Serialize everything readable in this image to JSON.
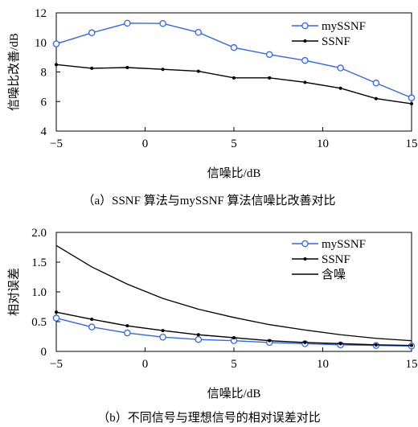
{
  "chart_data": [
    {
      "type": "line",
      "ylabel": "信噪比改善/dB",
      "xlabel": "信噪比/dB",
      "caption": "（a）SSNF 算法与mySSNF 算法信噪比改善对比",
      "xlim": [
        -5,
        15
      ],
      "ylim": [
        4,
        12
      ],
      "xticks": [
        "−5",
        "0",
        "5",
        "10",
        "15"
      ],
      "xtick_values": [
        -5,
        0,
        5,
        10,
        15
      ],
      "yticks": [
        "4",
        "6",
        "8",
        "10",
        "12"
      ],
      "ytick_values": [
        4,
        6,
        8,
        10,
        12
      ],
      "grid": false,
      "legend_position": "top-right",
      "series": [
        {
          "name": "mySSNF",
          "color": "#3366ee",
          "marker": "open-circle",
          "x": [
            -5,
            -3,
            -1,
            1,
            3,
            5,
            7,
            9,
            11,
            13,
            15
          ],
          "y": [
            9.9,
            10.65,
            11.3,
            11.28,
            10.68,
            9.65,
            9.18,
            8.78,
            8.27,
            7.25,
            6.25
          ]
        },
        {
          "name": "SSNF",
          "color": "#000000",
          "marker": "dot",
          "x": [
            -5,
            -3,
            -1,
            1,
            3,
            5,
            7,
            9,
            11,
            13,
            15
          ],
          "y": [
            8.5,
            8.25,
            8.3,
            8.18,
            8.05,
            7.6,
            7.6,
            7.3,
            6.9,
            6.2,
            5.85
          ]
        }
      ]
    },
    {
      "type": "line",
      "ylabel": "相对误差",
      "xlabel": "信噪比/dB",
      "caption": "（b）不同信号与理想信号的相对误差对比",
      "xlim": [
        -5,
        15
      ],
      "ylim": [
        0,
        2.0
      ],
      "xticks": [
        "−5",
        "0",
        "5",
        "10",
        "15"
      ],
      "xtick_values": [
        -5,
        0,
        5,
        10,
        15
      ],
      "yticks": [
        "0",
        "0.5",
        "1.0",
        "1.5",
        "2.0"
      ],
      "ytick_values": [
        0,
        0.5,
        1.0,
        1.5,
        2.0
      ],
      "grid": false,
      "legend_position": "top-right",
      "series": [
        {
          "name": "mySSNF",
          "color": "#3366ee",
          "marker": "open-circle",
          "x": [
            -5,
            -3,
            -1,
            1,
            3,
            5,
            7,
            9,
            11,
            13,
            15
          ],
          "y": [
            0.56,
            0.41,
            0.31,
            0.24,
            0.2,
            0.18,
            0.15,
            0.13,
            0.11,
            0.1,
            0.09
          ]
        },
        {
          "name": "SSNF",
          "color": "#000000",
          "marker": "dot",
          "x": [
            -5,
            -3,
            -1,
            1,
            3,
            5,
            7,
            9,
            11,
            13,
            15
          ],
          "y": [
            0.66,
            0.54,
            0.43,
            0.35,
            0.28,
            0.23,
            0.18,
            0.15,
            0.13,
            0.11,
            0.1
          ]
        },
        {
          "name": "含噪",
          "color": "#000000",
          "marker": "none",
          "x": [
            -5,
            -3,
            -1,
            1,
            3,
            5,
            7,
            9,
            11,
            13,
            15
          ],
          "y": [
            1.78,
            1.42,
            1.13,
            0.89,
            0.71,
            0.57,
            0.45,
            0.36,
            0.28,
            0.22,
            0.18
          ]
        }
      ]
    }
  ]
}
